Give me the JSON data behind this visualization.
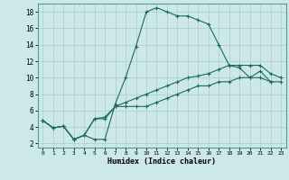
{
  "xlabel": "Humidex (Indice chaleur)",
  "bg_color": "#cce8e8",
  "line_color": "#1a6b5a",
  "grid_color": "#aacccc",
  "xlim": [
    -0.5,
    23.5
  ],
  "ylim": [
    1.5,
    19.0
  ],
  "xticks": [
    0,
    1,
    2,
    3,
    4,
    5,
    6,
    7,
    8,
    9,
    10,
    11,
    12,
    13,
    14,
    15,
    16,
    17,
    18,
    19,
    20,
    21,
    22,
    23
  ],
  "yticks": [
    2,
    4,
    6,
    8,
    10,
    12,
    14,
    16,
    18
  ],
  "line1_x": [
    0,
    1,
    2,
    3,
    4,
    5,
    6,
    7,
    8,
    9,
    10,
    11,
    12,
    13,
    14,
    15,
    16,
    17,
    18,
    19,
    20,
    21,
    22
  ],
  "line1_y": [
    4.8,
    3.9,
    4.1,
    2.5,
    3.0,
    2.5,
    2.5,
    6.8,
    10.0,
    13.8,
    18.0,
    18.5,
    18.0,
    17.5,
    17.5,
    17.0,
    16.5,
    14.0,
    11.5,
    11.2,
    10.0,
    10.8,
    9.5
  ],
  "line2_x": [
    0,
    1,
    2,
    3,
    4,
    5,
    6,
    7,
    8,
    9,
    10,
    11,
    12,
    13,
    14,
    15,
    16,
    17,
    18,
    19,
    20,
    21,
    22,
    23
  ],
  "line2_y": [
    4.8,
    3.9,
    4.1,
    2.5,
    3.0,
    5.0,
    5.2,
    6.5,
    7.0,
    7.5,
    8.0,
    8.5,
    9.0,
    9.5,
    10.0,
    10.2,
    10.5,
    11.0,
    11.5,
    11.5,
    11.5,
    11.5,
    10.5,
    10.0
  ],
  "line3_x": [
    0,
    1,
    2,
    3,
    4,
    5,
    6,
    7,
    8,
    9,
    10,
    11,
    12,
    13,
    14,
    15,
    16,
    17,
    18,
    19,
    20,
    21,
    22,
    23
  ],
  "line3_y": [
    4.8,
    3.9,
    4.1,
    2.5,
    3.0,
    5.0,
    5.0,
    6.5,
    6.5,
    6.5,
    6.5,
    7.0,
    7.5,
    8.0,
    8.5,
    9.0,
    9.0,
    9.5,
    9.5,
    10.0,
    10.0,
    10.0,
    9.5,
    9.5
  ]
}
